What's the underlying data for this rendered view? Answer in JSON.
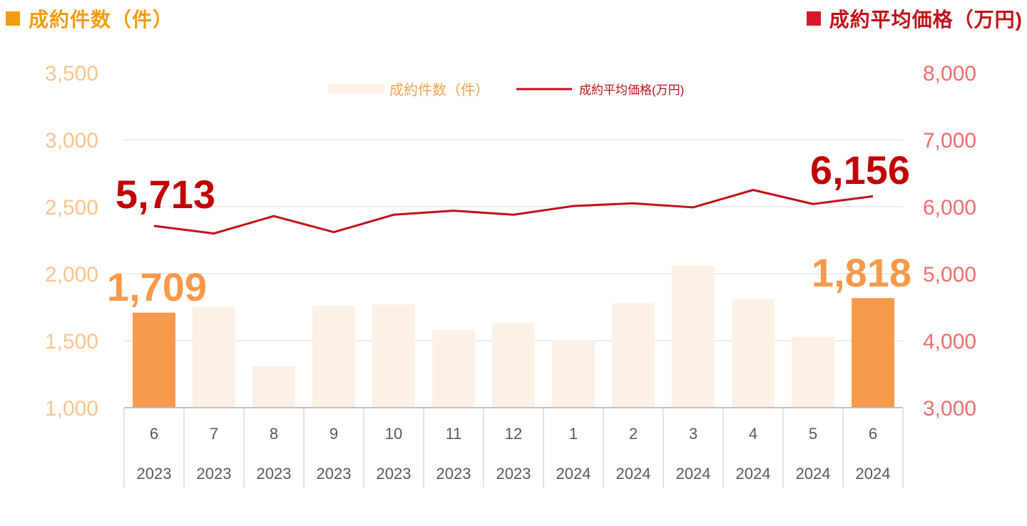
{
  "header": {
    "left_title": "成約件数（件）",
    "right_title": "成約平均価格（万円)"
  },
  "colors": {
    "bar_highlight": "#F7994A",
    "bar_normal": "#FDF0E6",
    "line": "#C0101A",
    "left_axis_text": "#F9C48F",
    "right_axis_text": "#F36B6B",
    "left_header": "#F39C12",
    "right_header": "#D7182A",
    "callout_left": "#C00000",
    "callout_bar": "#F7994A"
  },
  "chart_data": {
    "type": "bar",
    "categories": [
      {
        "month": "6",
        "year": "2023"
      },
      {
        "month": "7",
        "year": "2023"
      },
      {
        "month": "8",
        "year": "2023"
      },
      {
        "month": "9",
        "year": "2023"
      },
      {
        "month": "10",
        "year": "2023"
      },
      {
        "month": "11",
        "year": "2023"
      },
      {
        "month": "12",
        "year": "2023"
      },
      {
        "month": "1",
        "year": "2024"
      },
      {
        "month": "2",
        "year": "2024"
      },
      {
        "month": "3",
        "year": "2024"
      },
      {
        "month": "4",
        "year": "2024"
      },
      {
        "month": "5",
        "year": "2024"
      },
      {
        "month": "6",
        "year": "2024"
      }
    ],
    "series": [
      {
        "name": "成約件数（件）",
        "type": "bar",
        "axis": "left",
        "values": [
          1709,
          1750,
          1310,
          1760,
          1770,
          1580,
          1630,
          1500,
          1780,
          2060,
          1810,
          1530,
          1818
        ],
        "highlight": [
          true,
          false,
          false,
          false,
          false,
          false,
          false,
          false,
          false,
          false,
          false,
          false,
          true
        ]
      },
      {
        "name": "成約平均価格(万円)",
        "type": "line",
        "axis": "right",
        "values": [
          5713,
          5600,
          5860,
          5620,
          5880,
          5940,
          5880,
          6010,
          6050,
          5990,
          6250,
          6040,
          6156
        ]
      }
    ],
    "y_left": {
      "min": 1000,
      "max": 3500,
      "ticks": [
        "1,000",
        "1,500",
        "2,000",
        "2,500",
        "3,000",
        "3,500"
      ]
    },
    "y_right": {
      "min": 3000,
      "max": 8000,
      "ticks": [
        "3,000",
        "4,000",
        "5,000",
        "6,000",
        "7,000",
        "8,000"
      ]
    },
    "callouts": {
      "line_first": "5,713",
      "line_last": "6,156",
      "bar_first": "1,709",
      "bar_last": "1,818"
    },
    "legend_position": "top-center",
    "grid": true
  }
}
